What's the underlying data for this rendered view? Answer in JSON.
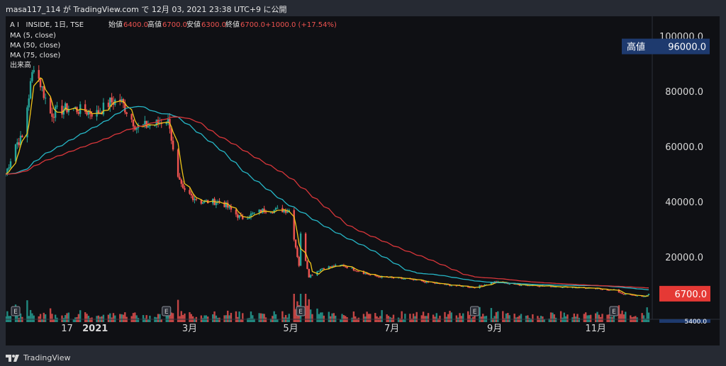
{
  "header": {
    "snapshot": "masa117_114 が TradingView.com で 12月 03, 2021 23:38 UTC+9 に公開"
  },
  "legend": {
    "symbol": "A I   INSIDE, 1日, TSE",
    "o_label": "始値",
    "o_val": "6400.0",
    "h_label": "高値",
    "h_val": "6700.0",
    "l_label": "安値",
    "l_val": "6300.0",
    "c_label": "終値",
    "c_val": "6700.0",
    "change": "+1000.0 (+17.54%)",
    "ma5": "MA (5, close)",
    "ma50": "MA (50, close)",
    "ma75": "MA (75, close)",
    "volume": "出来高"
  },
  "badges": {
    "high_label": "高値",
    "high_value": "96000.0",
    "last_value": "6700.0",
    "low_value": "5400.0"
  },
  "earnings_marker": "E",
  "brand": "TradingView",
  "colors": {
    "up": "#26a69a",
    "down": "#ef5350",
    "ma5": "#f0c419",
    "ma50": "#26b6c6",
    "ma75": "#d8363a",
    "badge_blue": "#1e3a6e",
    "badge_red": "#e53935"
  },
  "chart_data": {
    "type": "candlestick",
    "title": "A I   INSIDE, 1日, TSE",
    "ylim": [
      0,
      110000
    ],
    "y_ticks": [
      "100000.0",
      "80000.0",
      "60000.0",
      "40000.0",
      "20000.0"
    ],
    "x_tick_labels": [
      "17",
      "2021",
      "3月",
      "5月",
      "7月",
      "9月",
      "11月"
    ],
    "last_ohlc": {
      "open": 6400,
      "high": 6700,
      "low": 6300,
      "close": 6700
    },
    "period_high": 96000,
    "period_low": 5400,
    "price_path": {
      "dates": [
        "2020-11-10",
        "2020-11-16",
        "2020-11-20",
        "2020-11-27",
        "2020-12-07",
        "2020-12-18",
        "2021-01-04",
        "2021-01-12",
        "2021-01-18",
        "2021-01-28",
        "2021-02-08",
        "2021-02-15",
        "2021-02-17",
        "2021-02-19",
        "2021-02-22",
        "2021-02-25",
        "2021-03-08",
        "2021-03-20",
        "2021-04-01",
        "2021-04-15",
        "2021-04-30",
        "2021-05-06",
        "2021-05-07",
        "2021-05-12",
        "2021-05-20",
        "2021-06-01",
        "2021-06-20",
        "2021-07-10",
        "2021-08-01",
        "2021-08-20",
        "2021-09-01",
        "2021-09-15",
        "2021-10-01",
        "2021-10-20",
        "2021-11-12",
        "2021-11-18",
        "2021-12-01",
        "2021-12-03"
      ],
      "close": [
        50000,
        61000,
        63000,
        90000,
        72000,
        74000,
        72000,
        76000,
        77000,
        67000,
        68000,
        70000,
        68000,
        58000,
        48000,
        44000,
        40000,
        40000,
        34000,
        37000,
        37000,
        17000,
        28000,
        13000,
        16000,
        17000,
        13000,
        12000,
        10000,
        9000,
        11000,
        10000,
        9500,
        9000,
        8000,
        6500,
        5600,
        6700
      ]
    },
    "series": [
      {
        "name": "MA (5, close)"
      },
      {
        "name": "MA (50, close)"
      },
      {
        "name": "MA (75, close)"
      },
      {
        "name": "出来高"
      }
    ],
    "grid": false,
    "legend_position": "top-left"
  }
}
